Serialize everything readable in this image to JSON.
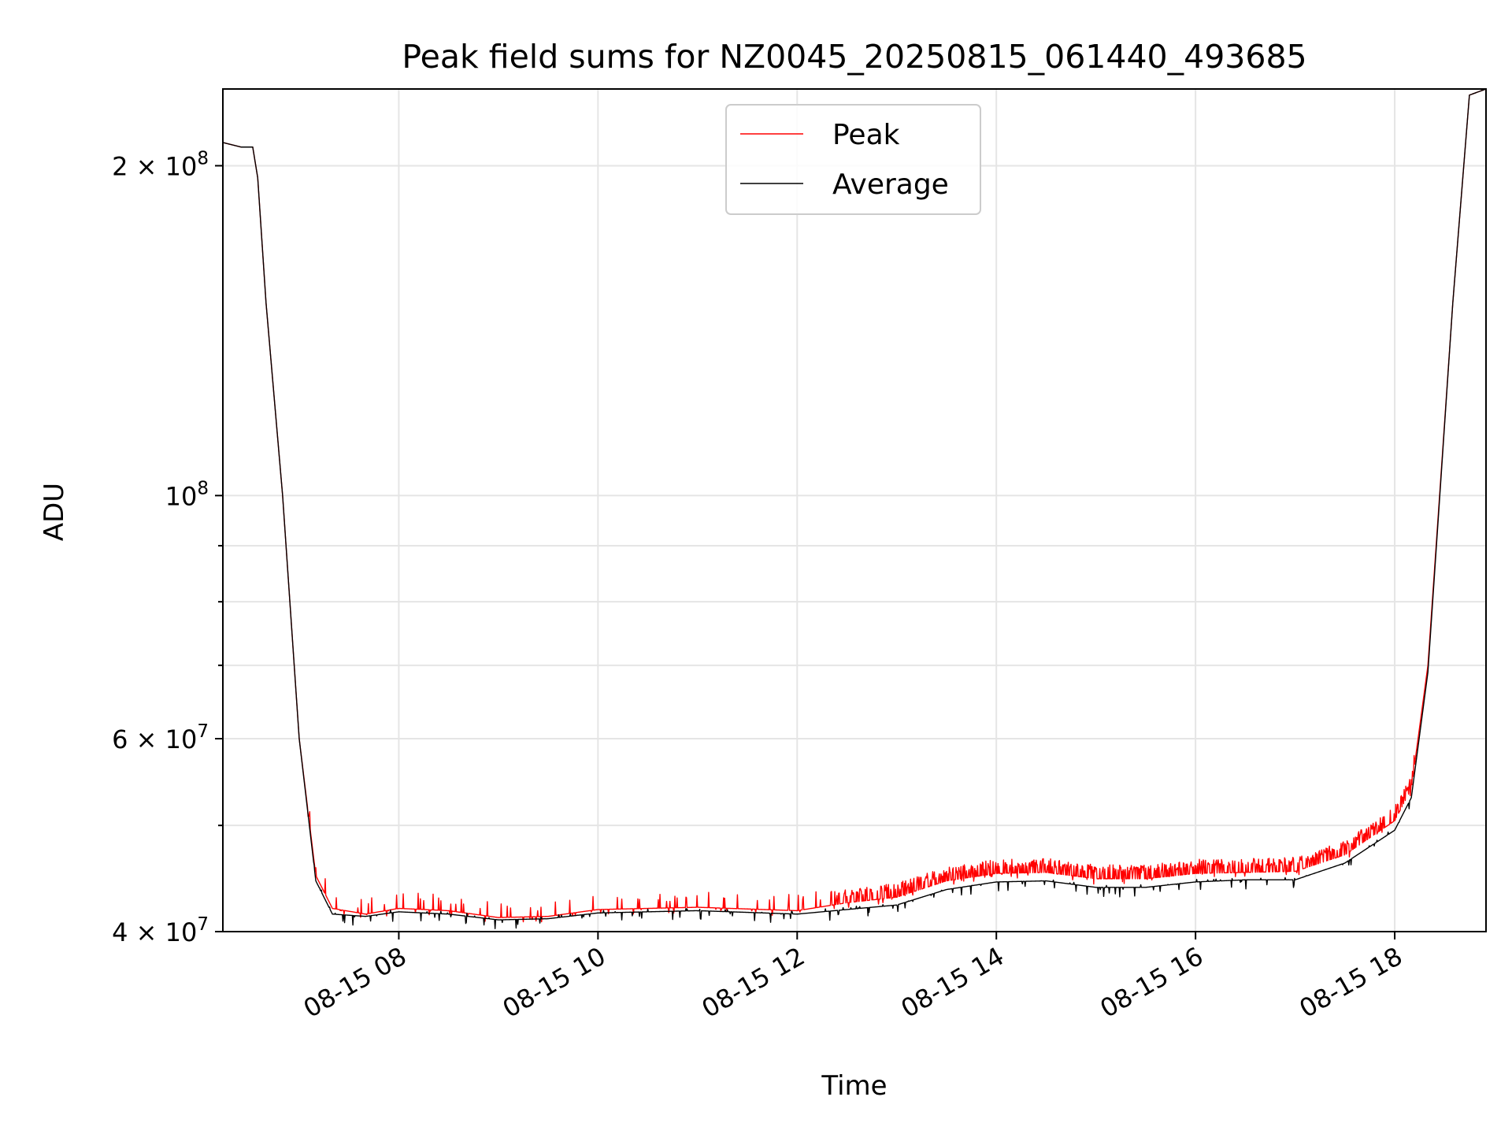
{
  "chart_data": {
    "type": "line",
    "title": "Peak field sums for NZ0045_20250815_061440_493685",
    "xlabel": "Time",
    "ylabel": "ADU",
    "x_range": [
      "2025-08-15 06:14",
      "2025-08-15 18:55"
    ],
    "y_scale": "log",
    "ylim": [
      40000000,
      235000000
    ],
    "grid": true,
    "legend_position": "upper-center",
    "x_ticks": [
      {
        "time": "2025-08-15 08:00",
        "label": "08-15 08"
      },
      {
        "time": "2025-08-15 10:00",
        "label": "08-15 10"
      },
      {
        "time": "2025-08-15 12:00",
        "label": "08-15 12"
      },
      {
        "time": "2025-08-15 14:00",
        "label": "08-15 14"
      },
      {
        "time": "2025-08-15 16:00",
        "label": "08-15 16"
      },
      {
        "time": "2025-08-15 18:00",
        "label": "08-15 18"
      }
    ],
    "y_major_ticks": [
      {
        "value": 40000000,
        "mantissa": "4",
        "exponent": "7"
      },
      {
        "value": 60000000,
        "mantissa": "6",
        "exponent": "7"
      },
      {
        "value": 100000000,
        "mantissa": "",
        "exponent": "8"
      },
      {
        "value": 200000000,
        "mantissa": "2",
        "exponent": "8"
      }
    ],
    "y_minor_ticks": [
      50000000,
      70000000,
      80000000,
      90000000
    ],
    "series": [
      {
        "name": "Peak",
        "color": "#ff0000",
        "spikes": true,
        "points": [
          [
            "2025-08-15 06:14",
            210000000
          ],
          [
            "2025-08-15 06:25",
            208000000
          ],
          [
            "2025-08-15 06:32",
            208000000
          ],
          [
            "2025-08-15 06:35",
            195000000
          ],
          [
            "2025-08-15 06:40",
            150000000
          ],
          [
            "2025-08-15 06:50",
            100000000
          ],
          [
            "2025-08-15 07:00",
            60000000
          ],
          [
            "2025-08-15 07:10",
            45000000
          ],
          [
            "2025-08-15 07:20",
            42000000
          ],
          [
            "2025-08-15 07:40",
            41500000
          ],
          [
            "2025-08-15 08:00",
            42000000
          ],
          [
            "2025-08-15 08:30",
            41800000
          ],
          [
            "2025-08-15 09:00",
            41200000
          ],
          [
            "2025-08-15 09:30",
            41300000
          ],
          [
            "2025-08-15 10:00",
            41900000
          ],
          [
            "2025-08-15 11:00",
            42100000
          ],
          [
            "2025-08-15 12:00",
            41800000
          ],
          [
            "2025-08-15 12:30",
            42500000
          ],
          [
            "2025-08-15 13:00",
            43000000
          ],
          [
            "2025-08-15 13:30",
            44500000
          ],
          [
            "2025-08-15 14:00",
            45200000
          ],
          [
            "2025-08-15 14:30",
            45300000
          ],
          [
            "2025-08-15 15:00",
            44700000
          ],
          [
            "2025-08-15 15:30",
            44700000
          ],
          [
            "2025-08-15 16:00",
            45200000
          ],
          [
            "2025-08-15 16:30",
            45300000
          ],
          [
            "2025-08-15 17:00",
            45400000
          ],
          [
            "2025-08-15 17:30",
            47000000
          ],
          [
            "2025-08-15 18:00",
            50500000
          ],
          [
            "2025-08-15 18:10",
            54000000
          ],
          [
            "2025-08-15 18:20",
            70000000
          ],
          [
            "2025-08-15 18:35",
            150000000
          ],
          [
            "2025-08-15 18:45",
            232000000
          ],
          [
            "2025-08-15 18:55",
            235000000
          ]
        ]
      },
      {
        "name": "Average",
        "color": "#000000",
        "spikes": false,
        "points": [
          [
            "2025-08-15 06:14",
            210000000
          ],
          [
            "2025-08-15 06:25",
            208000000
          ],
          [
            "2025-08-15 06:32",
            208000000
          ],
          [
            "2025-08-15 06:35",
            195000000
          ],
          [
            "2025-08-15 06:40",
            150000000
          ],
          [
            "2025-08-15 06:50",
            100000000
          ],
          [
            "2025-08-15 07:00",
            60000000
          ],
          [
            "2025-08-15 07:10",
            44500000
          ],
          [
            "2025-08-15 07:20",
            41500000
          ],
          [
            "2025-08-15 07:40",
            41300000
          ],
          [
            "2025-08-15 08:00",
            41700000
          ],
          [
            "2025-08-15 08:30",
            41500000
          ],
          [
            "2025-08-15 09:00",
            41000000
          ],
          [
            "2025-08-15 09:30",
            41100000
          ],
          [
            "2025-08-15 10:00",
            41600000
          ],
          [
            "2025-08-15 11:00",
            41800000
          ],
          [
            "2025-08-15 12:00",
            41500000
          ],
          [
            "2025-08-15 12:30",
            41900000
          ],
          [
            "2025-08-15 13:00",
            42300000
          ],
          [
            "2025-08-15 13:30",
            43700000
          ],
          [
            "2025-08-15 14:00",
            44400000
          ],
          [
            "2025-08-15 14:30",
            44500000
          ],
          [
            "2025-08-15 15:00",
            43900000
          ],
          [
            "2025-08-15 15:30",
            43900000
          ],
          [
            "2025-08-15 16:00",
            44400000
          ],
          [
            "2025-08-15 16:30",
            44600000
          ],
          [
            "2025-08-15 17:00",
            44600000
          ],
          [
            "2025-08-15 17:30",
            46200000
          ],
          [
            "2025-08-15 18:00",
            49500000
          ],
          [
            "2025-08-15 18:10",
            53000000
          ],
          [
            "2025-08-15 18:20",
            69000000
          ],
          [
            "2025-08-15 18:35",
            150000000
          ],
          [
            "2025-08-15 18:45",
            232000000
          ],
          [
            "2025-08-15 18:55",
            235000000
          ]
        ]
      }
    ]
  }
}
